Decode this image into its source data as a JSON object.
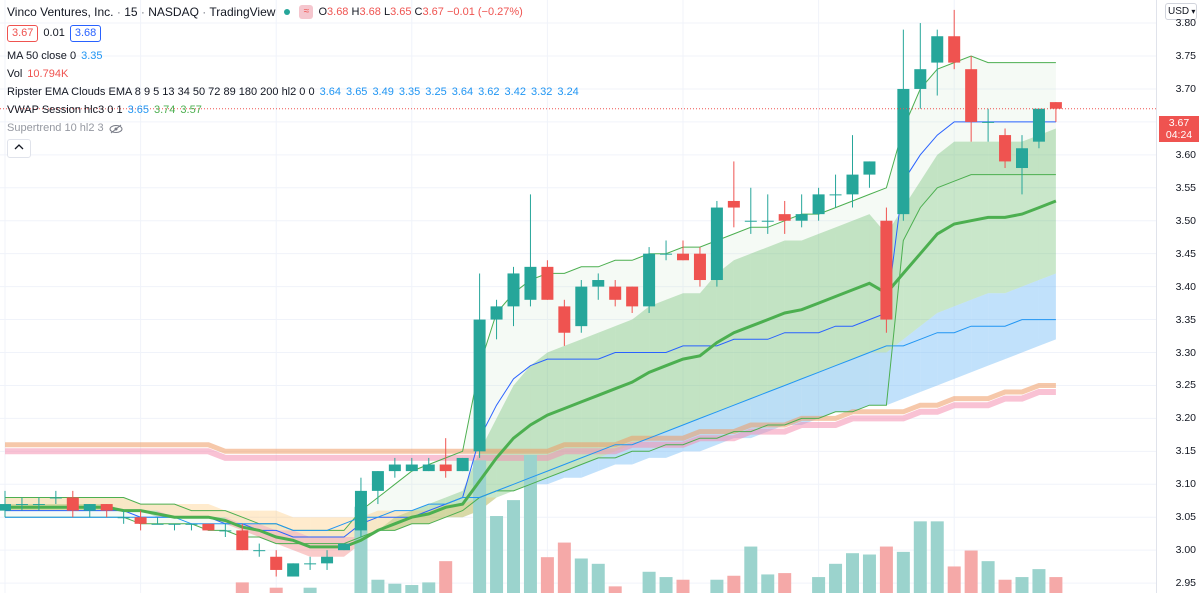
{
  "header": {
    "symbol_name": "Vinco Ventures, Inc.",
    "interval": "15",
    "exchange": "NASDAQ",
    "source": "TradingView",
    "o_label": "O",
    "o": "3.68",
    "h_label": "H",
    "h": "3.68",
    "l_label": "L",
    "l": "3.65",
    "c_label": "C",
    "c": "3.67",
    "change": "−0.01 (−0.27%)"
  },
  "price_boxes": {
    "sell": "3.67",
    "spread": "0.01",
    "buy": "3.68"
  },
  "indicators": {
    "ma": {
      "name": "MA 50 close 0",
      "value": "3.35"
    },
    "vol": {
      "name": "Vol",
      "value": "10.794K"
    },
    "ema_clouds": {
      "name": "Ripster EMA Clouds EMA 8 9 5 13 34 50 72 89 180 200 hl2 0 0",
      "values": [
        "3.64",
        "3.65",
        "3.49",
        "3.35",
        "3.25",
        "3.64",
        "3.62",
        "3.42",
        "3.32",
        "3.24"
      ]
    },
    "vwap": {
      "name": "VWAP Session hlc3 0 1",
      "values": [
        "3.65",
        "3.74",
        "3.57"
      ]
    },
    "supertrend": {
      "name": "Supertrend 10 hl2 3"
    }
  },
  "axis": {
    "currency": "USD",
    "ticks": [
      "3.80",
      "3.75",
      "3.70",
      "3.65",
      "3.60",
      "3.55",
      "3.50",
      "3.45",
      "3.40",
      "3.35",
      "3.30",
      "3.25",
      "3.20",
      "3.15",
      "3.10",
      "3.05",
      "3.00",
      "2.95"
    ],
    "current_price": "3.67",
    "countdown": "04:24"
  },
  "chart_data": {
    "type": "candlestick",
    "title": "Vinco Ventures, Inc. · 15 · NASDAQ",
    "ylim": [
      2.935,
      3.835
    ],
    "grid": true,
    "colors": {
      "up": "#26a69a",
      "down": "#ef5350",
      "vol_up": "#9bd3cd",
      "vol_down": "#f5a9a8"
    },
    "candles": [
      {
        "o": 3.06,
        "h": 3.09,
        "l": 3.05,
        "c": 3.07
      },
      {
        "o": 3.07,
        "h": 3.08,
        "l": 3.06,
        "c": 3.07
      },
      {
        "o": 3.07,
        "h": 3.08,
        "l": 3.06,
        "c": 3.07
      },
      {
        "o": 3.08,
        "h": 3.09,
        "l": 3.07,
        "c": 3.08
      },
      {
        "o": 3.08,
        "h": 3.09,
        "l": 3.05,
        "c": 3.06
      },
      {
        "o": 3.06,
        "h": 3.07,
        "l": 3.05,
        "c": 3.07
      },
      {
        "o": 3.07,
        "h": 3.07,
        "l": 3.05,
        "c": 3.06
      },
      {
        "o": 3.05,
        "h": 3.06,
        "l": 3.04,
        "c": 3.05
      },
      {
        "o": 3.05,
        "h": 3.06,
        "l": 3.03,
        "c": 3.04
      },
      {
        "o": 3.04,
        "h": 3.05,
        "l": 3.04,
        "c": 3.04
      },
      {
        "o": 3.04,
        "h": 3.04,
        "l": 3.03,
        "c": 3.04
      },
      {
        "o": 3.04,
        "h": 3.04,
        "l": 3.03,
        "c": 3.04
      },
      {
        "o": 3.04,
        "h": 3.04,
        "l": 3.03,
        "c": 3.03
      },
      {
        "o": 3.03,
        "h": 3.04,
        "l": 3.02,
        "c": 3.03
      },
      {
        "o": 3.03,
        "h": 3.04,
        "l": 3.0,
        "c": 3.0
      },
      {
        "o": 3.0,
        "h": 3.01,
        "l": 2.99,
        "c": 3.0
      },
      {
        "o": 2.99,
        "h": 3.0,
        "l": 2.96,
        "c": 2.97
      },
      {
        "o": 2.96,
        "h": 2.98,
        "l": 2.96,
        "c": 2.98
      },
      {
        "o": 2.98,
        "h": 2.99,
        "l": 2.97,
        "c": 2.98
      },
      {
        "o": 2.98,
        "h": 3.0,
        "l": 2.97,
        "c": 2.99
      },
      {
        "o": 3.0,
        "h": 3.01,
        "l": 3.0,
        "c": 3.01
      },
      {
        "o": 3.03,
        "h": 3.11,
        "l": 3.02,
        "c": 3.09
      },
      {
        "o": 3.09,
        "h": 3.12,
        "l": 3.07,
        "c": 3.12
      },
      {
        "o": 3.12,
        "h": 3.14,
        "l": 3.11,
        "c": 3.13
      },
      {
        "o": 3.12,
        "h": 3.14,
        "l": 3.12,
        "c": 3.13
      },
      {
        "o": 3.12,
        "h": 3.14,
        "l": 3.12,
        "c": 3.13
      },
      {
        "o": 3.13,
        "h": 3.17,
        "l": 3.11,
        "c": 3.12
      },
      {
        "o": 3.12,
        "h": 3.14,
        "l": 3.12,
        "c": 3.14
      },
      {
        "o": 3.15,
        "h": 3.42,
        "l": 3.14,
        "c": 3.35
      },
      {
        "o": 3.35,
        "h": 3.38,
        "l": 3.32,
        "c": 3.37
      },
      {
        "o": 3.37,
        "h": 3.43,
        "l": 3.34,
        "c": 3.42
      },
      {
        "o": 3.38,
        "h": 3.54,
        "l": 3.37,
        "c": 3.43
      },
      {
        "o": 3.43,
        "h": 3.44,
        "l": 3.38,
        "c": 3.38
      },
      {
        "o": 3.37,
        "h": 3.38,
        "l": 3.31,
        "c": 3.33
      },
      {
        "o": 3.34,
        "h": 3.41,
        "l": 3.33,
        "c": 3.4
      },
      {
        "o": 3.4,
        "h": 3.42,
        "l": 3.38,
        "c": 3.41
      },
      {
        "o": 3.4,
        "h": 3.41,
        "l": 3.37,
        "c": 3.38
      },
      {
        "o": 3.4,
        "h": 3.4,
        "l": 3.36,
        "c": 3.37
      },
      {
        "o": 3.37,
        "h": 3.46,
        "l": 3.36,
        "c": 3.45
      },
      {
        "o": 3.45,
        "h": 3.47,
        "l": 3.44,
        "c": 3.45
      },
      {
        "o": 3.45,
        "h": 3.47,
        "l": 3.44,
        "c": 3.44
      },
      {
        "o": 3.45,
        "h": 3.46,
        "l": 3.4,
        "c": 3.41
      },
      {
        "o": 3.41,
        "h": 3.53,
        "l": 3.4,
        "c": 3.52
      },
      {
        "o": 3.53,
        "h": 3.59,
        "l": 3.49,
        "c": 3.52
      },
      {
        "o": 3.5,
        "h": 3.55,
        "l": 3.48,
        "c": 3.5
      },
      {
        "o": 3.5,
        "h": 3.54,
        "l": 3.48,
        "c": 3.5
      },
      {
        "o": 3.51,
        "h": 3.53,
        "l": 3.48,
        "c": 3.5
      },
      {
        "o": 3.5,
        "h": 3.54,
        "l": 3.49,
        "c": 3.51
      },
      {
        "o": 3.51,
        "h": 3.55,
        "l": 3.5,
        "c": 3.54
      },
      {
        "o": 3.54,
        "h": 3.57,
        "l": 3.52,
        "c": 3.54
      },
      {
        "o": 3.54,
        "h": 3.63,
        "l": 3.52,
        "c": 3.57
      },
      {
        "o": 3.57,
        "h": 3.59,
        "l": 3.55,
        "c": 3.59
      },
      {
        "o": 3.5,
        "h": 3.52,
        "l": 3.33,
        "c": 3.35
      },
      {
        "o": 3.51,
        "h": 3.79,
        "l": 3.5,
        "c": 3.7
      },
      {
        "o": 3.7,
        "h": 3.8,
        "l": 3.67,
        "c": 3.73
      },
      {
        "o": 3.74,
        "h": 3.79,
        "l": 3.69,
        "c": 3.78
      },
      {
        "o": 3.78,
        "h": 3.82,
        "l": 3.73,
        "c": 3.74
      },
      {
        "o": 3.73,
        "h": 3.75,
        "l": 3.62,
        "c": 3.65
      },
      {
        "o": 3.65,
        "h": 3.67,
        "l": 3.62,
        "c": 3.65
      },
      {
        "o": 3.63,
        "h": 3.64,
        "l": 3.58,
        "c": 3.59
      },
      {
        "o": 3.58,
        "h": 3.63,
        "l": 3.54,
        "c": 3.61
      },
      {
        "o": 3.62,
        "h": 3.67,
        "l": 3.61,
        "c": 3.67
      },
      {
        "o": 3.68,
        "h": 3.68,
        "l": 3.65,
        "c": 3.67
      }
    ],
    "volume": [
      0,
      0,
      0,
      0,
      0,
      0,
      0,
      0,
      0,
      0,
      0,
      0,
      0,
      0,
      8,
      0,
      4,
      0,
      4,
      0,
      0,
      65,
      10,
      7,
      6,
      8,
      24,
      0,
      100,
      58,
      70,
      104,
      27,
      38,
      26,
      22,
      5,
      0,
      16,
      12,
      10,
      0,
      10,
      13,
      35,
      14,
      15,
      0,
      12,
      22,
      30,
      29,
      35,
      31,
      54,
      54,
      20,
      32,
      24,
      10,
      12,
      18,
      12
    ],
    "series": [
      {
        "name": "MA 50 close 0",
        "values": [
          3.05,
          3.05,
          3.05,
          3.05,
          3.05,
          3.05,
          3.05,
          3.05,
          3.05,
          3.05,
          3.05,
          3.04,
          3.04,
          3.04,
          3.04,
          3.04,
          3.04,
          3.03,
          3.03,
          3.03,
          3.04,
          3.05,
          3.05,
          3.06,
          3.06,
          3.07,
          3.07,
          3.08,
          3.08,
          3.09,
          3.1,
          3.11,
          3.12,
          3.13,
          3.14,
          3.15,
          3.16,
          3.16,
          3.17,
          3.18,
          3.19,
          3.2,
          3.21,
          3.22,
          3.23,
          3.24,
          3.25,
          3.26,
          3.27,
          3.28,
          3.29,
          3.3,
          3.31,
          3.31,
          3.32,
          3.33,
          3.33,
          3.34,
          3.34,
          3.34,
          3.35,
          3.35,
          3.35
        ]
      },
      {
        "name": "VWAP Session hlc3 0 1",
        "values": [
          3.06,
          3.06,
          3.06,
          3.06,
          3.06,
          3.06,
          3.06,
          3.06,
          3.05,
          3.05,
          3.05,
          3.05,
          3.05,
          3.04,
          3.04,
          3.03,
          3.03,
          3.02,
          3.02,
          3.02,
          3.02,
          3.04,
          3.05,
          3.05,
          3.05,
          3.06,
          3.07,
          3.08,
          3.17,
          3.22,
          3.26,
          3.28,
          3.29,
          3.29,
          3.29,
          3.29,
          3.3,
          3.3,
          3.3,
          3.3,
          3.31,
          3.31,
          3.31,
          3.32,
          3.32,
          3.32,
          3.33,
          3.33,
          3.33,
          3.34,
          3.34,
          3.35,
          3.36,
          3.56,
          3.6,
          3.63,
          3.65,
          3.65,
          3.65,
          3.65,
          3.65,
          3.65,
          3.65
        ]
      },
      {
        "name": "VWAP Upper",
        "values": [
          3.08,
          3.08,
          3.08,
          3.08,
          3.08,
          3.08,
          3.08,
          3.08,
          3.07,
          3.07,
          3.07,
          3.06,
          3.06,
          3.06,
          3.05,
          3.04,
          3.04,
          3.03,
          3.03,
          3.03,
          3.03,
          3.06,
          3.08,
          3.1,
          3.12,
          3.13,
          3.14,
          3.15,
          3.28,
          3.36,
          3.39,
          3.41,
          3.42,
          3.42,
          3.43,
          3.43,
          3.44,
          3.44,
          3.45,
          3.45,
          3.46,
          3.46,
          3.47,
          3.48,
          3.49,
          3.49,
          3.5,
          3.51,
          3.51,
          3.52,
          3.53,
          3.54,
          3.55,
          3.64,
          3.7,
          3.73,
          3.74,
          3.75,
          3.74,
          3.74,
          3.74,
          3.74,
          3.74
        ]
      },
      {
        "name": "VWAP Lower",
        "values": [
          3.05,
          3.05,
          3.05,
          3.05,
          3.05,
          3.05,
          3.05,
          3.05,
          3.04,
          3.04,
          3.04,
          3.04,
          3.03,
          3.03,
          3.02,
          3.02,
          3.01,
          3.01,
          3.01,
          3.01,
          3.01,
          3.02,
          3.03,
          3.03,
          3.04,
          3.04,
          3.05,
          3.06,
          3.08,
          3.09,
          3.09,
          3.1,
          3.11,
          3.12,
          3.13,
          3.14,
          3.14,
          3.15,
          3.15,
          3.16,
          3.16,
          3.17,
          3.17,
          3.18,
          3.18,
          3.19,
          3.19,
          3.2,
          3.2,
          3.21,
          3.21,
          3.22,
          3.22,
          3.47,
          3.52,
          3.55,
          3.56,
          3.57,
          3.57,
          3.57,
          3.57,
          3.57,
          3.57
        ]
      },
      {
        "name": "EMA 8",
        "values": [
          3.07,
          3.07,
          3.07,
          3.07,
          3.07,
          3.07,
          3.07,
          3.06,
          3.06,
          3.05,
          3.05,
          3.05,
          3.05,
          3.04,
          3.03,
          3.02,
          3.01,
          3.0,
          2.99,
          2.99,
          2.99,
          3.01,
          3.03,
          3.05,
          3.06,
          3.07,
          3.08,
          3.09,
          3.15,
          3.2,
          3.25,
          3.28,
          3.3,
          3.31,
          3.32,
          3.33,
          3.34,
          3.35,
          3.37,
          3.38,
          3.39,
          3.39,
          3.42,
          3.44,
          3.45,
          3.46,
          3.47,
          3.47,
          3.48,
          3.49,
          3.5,
          3.51,
          3.48,
          3.52,
          3.56,
          3.6,
          3.62,
          3.62,
          3.62,
          3.62,
          3.62,
          3.63,
          3.64
        ]
      },
      {
        "name": "EMA 34",
        "values": [
          3.06,
          3.06,
          3.06,
          3.06,
          3.06,
          3.06,
          3.06,
          3.06,
          3.06,
          3.06,
          3.05,
          3.05,
          3.05,
          3.05,
          3.04,
          3.04,
          3.03,
          3.03,
          3.02,
          3.02,
          3.02,
          3.02,
          3.03,
          3.03,
          3.04,
          3.04,
          3.05,
          3.05,
          3.06,
          3.08,
          3.09,
          3.1,
          3.11,
          3.12,
          3.13,
          3.14,
          3.15,
          3.16,
          3.17,
          3.18,
          3.19,
          3.2,
          3.21,
          3.22,
          3.23,
          3.24,
          3.25,
          3.26,
          3.27,
          3.28,
          3.29,
          3.3,
          3.3,
          3.32,
          3.34,
          3.36,
          3.37,
          3.38,
          3.39,
          3.39,
          3.4,
          3.41,
          3.42
        ]
      },
      {
        "name": "EMA 72",
        "values": [
          3.08,
          3.08,
          3.08,
          3.08,
          3.08,
          3.08,
          3.08,
          3.08,
          3.07,
          3.07,
          3.07,
          3.07,
          3.07,
          3.06,
          3.06,
          3.06,
          3.06,
          3.05,
          3.05,
          3.05,
          3.05,
          3.05,
          3.06,
          3.06,
          3.06,
          3.06,
          3.07,
          3.07,
          3.08,
          3.08,
          3.09,
          3.1,
          3.1,
          3.11,
          3.11,
          3.12,
          3.13,
          3.13,
          3.14,
          3.14,
          3.15,
          3.15,
          3.16,
          3.17,
          3.17,
          3.18,
          3.19,
          3.19,
          3.2,
          3.21,
          3.21,
          3.22,
          3.22,
          3.23,
          3.24,
          3.25,
          3.26,
          3.27,
          3.28,
          3.29,
          3.3,
          3.31,
          3.32
        ]
      },
      {
        "name": "EMA 180",
        "values": [
          3.15,
          3.15,
          3.15,
          3.15,
          3.15,
          3.15,
          3.15,
          3.15,
          3.15,
          3.15,
          3.15,
          3.15,
          3.15,
          3.14,
          3.14,
          3.14,
          3.14,
          3.14,
          3.14,
          3.14,
          3.14,
          3.14,
          3.14,
          3.14,
          3.14,
          3.14,
          3.14,
          3.14,
          3.14,
          3.14,
          3.14,
          3.14,
          3.14,
          3.15,
          3.15,
          3.15,
          3.15,
          3.16,
          3.16,
          3.16,
          3.16,
          3.17,
          3.17,
          3.17,
          3.18,
          3.18,
          3.18,
          3.19,
          3.19,
          3.19,
          3.2,
          3.2,
          3.2,
          3.2,
          3.21,
          3.21,
          3.22,
          3.22,
          3.22,
          3.23,
          3.23,
          3.24,
          3.24
        ]
      }
    ]
  }
}
